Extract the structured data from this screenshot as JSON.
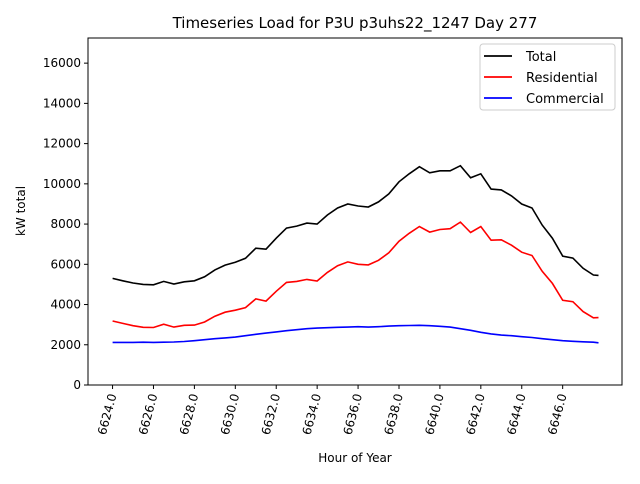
{
  "chart_data": {
    "type": "line",
    "title": "Timeseries Load for P3U p3uhs22_1247  Day 277",
    "xlabel": "Hour of Year",
    "ylabel": "kW total",
    "xlim": [
      6622.8,
      6648.9
    ],
    "ylim": [
      0,
      17250
    ],
    "xticks": [
      6624,
      6626,
      6628,
      6630,
      6632,
      6634,
      6636,
      6638,
      6640,
      6642,
      6644,
      6646
    ],
    "xtick_labels": [
      "6624.0",
      "6626.0",
      "6628.0",
      "6630.0",
      "6632.0",
      "6634.0",
      "6636.0",
      "6638.0",
      "6640.0",
      "6642.0",
      "6644.0",
      "6646.0"
    ],
    "yticks": [
      0,
      2000,
      4000,
      6000,
      8000,
      10000,
      12000,
      14000,
      16000
    ],
    "ytick_labels": [
      "0",
      "2000",
      "4000",
      "6000",
      "8000",
      "10000",
      "12000",
      "14000",
      "16000"
    ],
    "grid": false,
    "legend_position": "top-right",
    "x": [
      6624,
      6624.5,
      6625,
      6625.5,
      6626,
      6626.5,
      6627,
      6627.5,
      6628,
      6628.5,
      6629,
      6629.5,
      6630,
      6630.5,
      6631,
      6631.5,
      6632,
      6632.5,
      6633,
      6633.5,
      6634,
      6634.5,
      6635,
      6635.5,
      6636,
      6636.5,
      6637,
      6637.5,
      6638,
      6638.5,
      6639,
      6639.5,
      6640,
      6640.5,
      6641,
      6641.5,
      6642,
      6642.5,
      6643,
      6643.5,
      6644,
      6644.5,
      6645,
      6645.5,
      6646,
      6646.5,
      6647,
      6647.5,
      6647.75
    ],
    "series": [
      {
        "name": "Total",
        "color": "#000000",
        "values": [
          5300,
          5180,
          5070,
          5000,
          4980,
          5150,
          5020,
          5130,
          5180,
          5380,
          5720,
          5960,
          6100,
          6300,
          6800,
          6750,
          7300,
          7800,
          7900,
          8050,
          8000,
          8450,
          8800,
          9000,
          8900,
          8850,
          9100,
          9500,
          10100,
          10500,
          10850,
          10550,
          10650,
          10650,
          10900,
          10300,
          10500,
          9740,
          9700,
          9400,
          9000,
          8800,
          7950,
          7300,
          6410,
          6310,
          5800,
          5470,
          5450
        ]
      },
      {
        "name": "Residential",
        "color": "#ff0000",
        "values": [
          3180,
          3060,
          2950,
          2870,
          2860,
          3020,
          2880,
          2970,
          2980,
          3130,
          3420,
          3620,
          3720,
          3850,
          4280,
          4170,
          4660,
          5100,
          5150,
          5250,
          5170,
          5600,
          5930,
          6120,
          6000,
          5970,
          6200,
          6570,
          7150,
          7540,
          7880,
          7600,
          7730,
          7770,
          8100,
          7580,
          7880,
          7200,
          7220,
          6950,
          6600,
          6440,
          5650,
          5050,
          4210,
          4140,
          3650,
          3340,
          3350
        ]
      },
      {
        "name": "Commercial",
        "color": "#0000ff",
        "values": [
          2120,
          2120,
          2120,
          2130,
          2120,
          2130,
          2140,
          2160,
          2200,
          2250,
          2300,
          2340,
          2380,
          2450,
          2520,
          2580,
          2640,
          2700,
          2750,
          2800,
          2830,
          2850,
          2870,
          2880,
          2900,
          2880,
          2900,
          2930,
          2950,
          2960,
          2970,
          2950,
          2920,
          2880,
          2800,
          2720,
          2620,
          2540,
          2480,
          2450,
          2400,
          2360,
          2300,
          2250,
          2200,
          2170,
          2150,
          2130,
          2100
        ]
      }
    ]
  }
}
